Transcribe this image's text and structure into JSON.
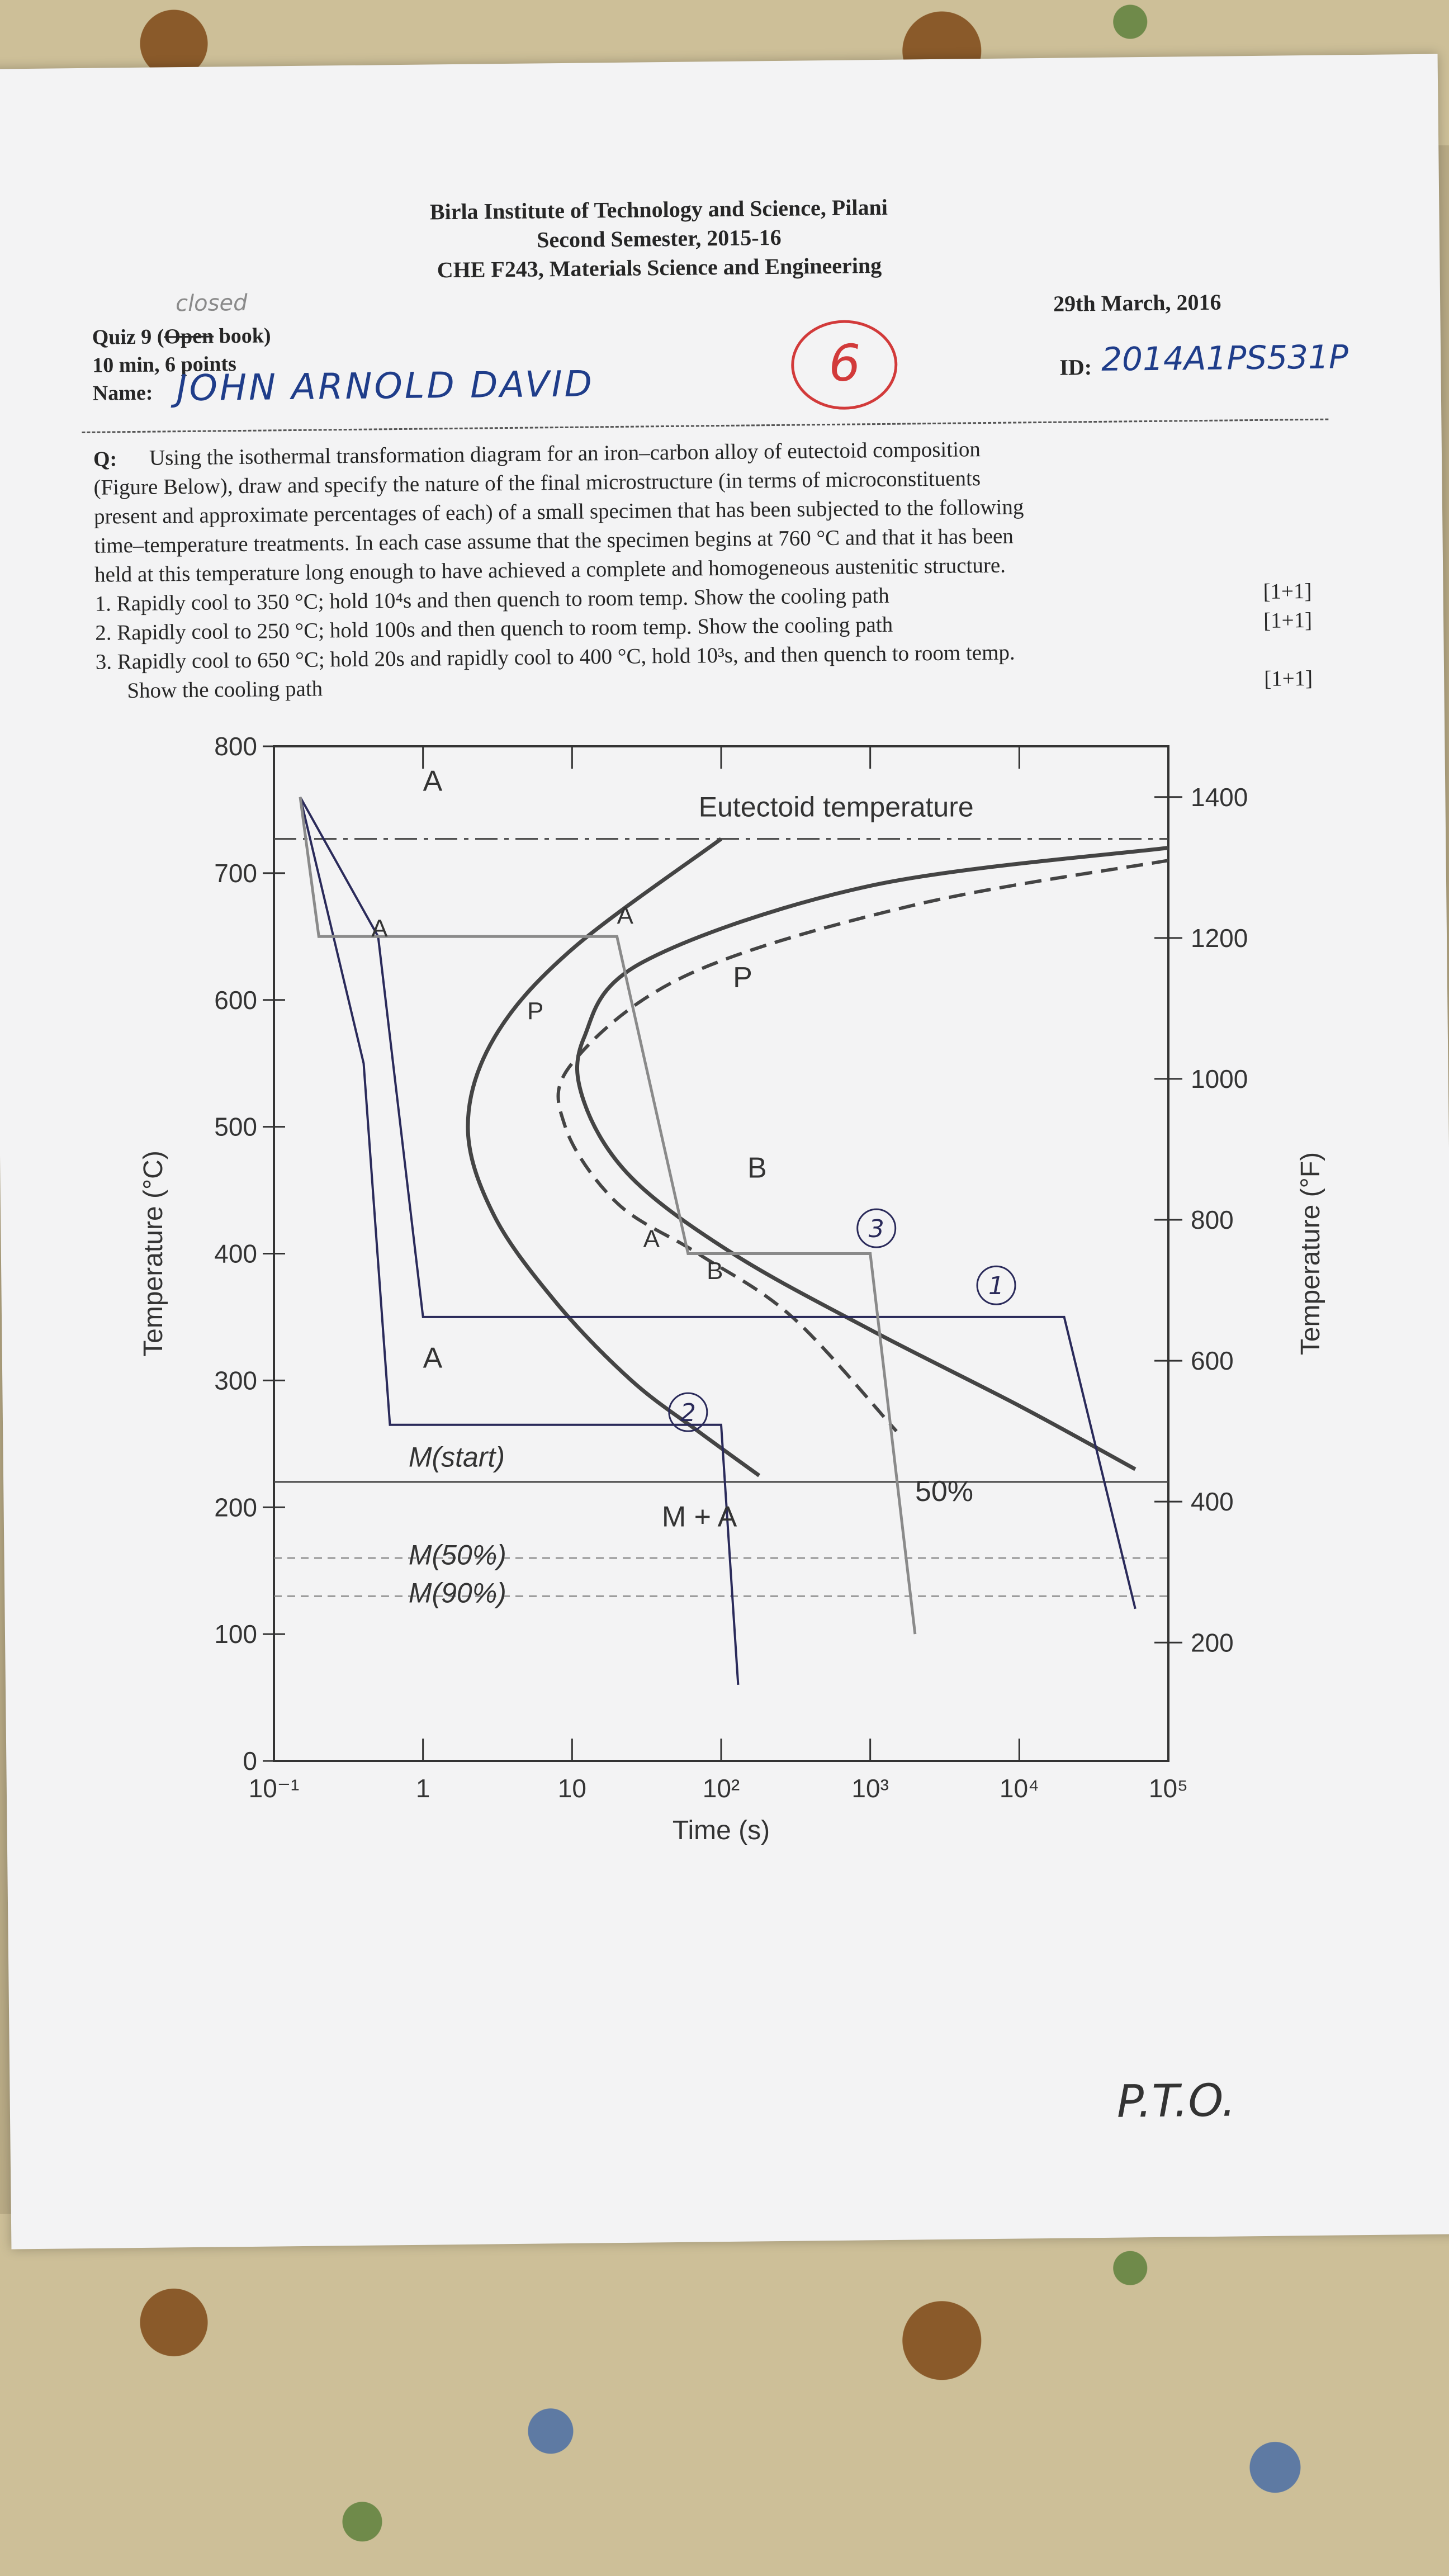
{
  "header": {
    "institute": "Birla Institute of Technology and Science, Pilani",
    "semester": "Second Semester, 2015-16",
    "course": "CHE F243, Materials Science and Engineering",
    "date": "29th March, 2016"
  },
  "quiz": {
    "closed_note": "closed",
    "title_prefix": "Quiz 9 (",
    "title_struck": "Open",
    "title_suffix": " book)",
    "duration": "10 min, 6 points",
    "name_label": "Name:",
    "name_value": "JOHN ARNOLD DAVID",
    "id_label": "ID:",
    "id_value": "2014A1PS531P",
    "score": "6"
  },
  "question": {
    "label": "Q:",
    "lines": [
      "Using the isothermal transformation diagram for an iron–carbon alloy of eutectoid composition",
      "(Figure Below), draw and specify the nature of the final microstructure (in terms of microconstituents",
      "present and approximate percentages of each) of a small specimen that has been subjected to the following",
      "time–temperature treatments. In each case assume that the specimen begins at 760 °C and that it has been",
      "held at this temperature long enough to have achieved a complete and homogeneous austenitic structure."
    ],
    "items": [
      {
        "text": "1.  Rapidly cool to 350 °C; hold 10⁴s and then quench to room temp. Show the cooling path",
        "points": "[1+1]"
      },
      {
        "text": "2.  Rapidly cool to 250 °C; hold 100s and then quench to room temp. Show the cooling path",
        "points": "[1+1]"
      },
      {
        "text": "3.  Rapidly cool to 650 °C; hold 20s and rapidly cool to 400 °C, hold 10³s, and then quench to room temp.",
        "points": ""
      },
      {
        "text": "Show the cooling path",
        "points": "[1+1]"
      }
    ]
  },
  "chart_data": {
    "type": "line",
    "xlabel": "Time (s)",
    "ylabel": "Temperature (°C)",
    "ylabel_right": "Temperature (°F)",
    "xscale": "log",
    "xlim": [
      0.1,
      100000
    ],
    "ylim": [
      0,
      800
    ],
    "x_tick_labels": [
      "10⁻¹",
      "1",
      "10",
      "10²",
      "10³",
      "10⁴",
      "10⁵"
    ],
    "x_tick_values": [
      0.1,
      1,
      10,
      100,
      1000,
      10000,
      100000
    ],
    "y_tick_values": [
      0,
      100,
      200,
      300,
      400,
      500,
      600,
      700,
      800
    ],
    "y_right_tick_values": [
      200,
      400,
      600,
      800,
      1000,
      1200,
      1400
    ],
    "eutectoid_label": "Eutectoid temperature",
    "eutectoid_temp": 727,
    "ms_temp": 220,
    "m50_temp": 160,
    "m90_temp": 130,
    "region_labels": {
      "A_top": "A",
      "P": "P",
      "B": "B",
      "A_low": "A",
      "M_start": "M(start)",
      "M_plus_A": "M + A",
      "M50": "M(50%)",
      "M90": "M(90%)",
      "fifty": "50%",
      "A_path": "A",
      "P_small": "P",
      "A_dash1": "A",
      "A_dash2": "A",
      "B_small": "B"
    },
    "start_curve": [
      [
        100,
        727
      ],
      [
        10,
        640
      ],
      [
        3,
        570
      ],
      [
        2,
        500
      ],
      [
        3,
        430
      ],
      [
        8,
        360
      ],
      [
        25,
        300
      ],
      [
        70,
        260
      ],
      [
        180,
        225
      ]
    ],
    "finish_curve": [
      [
        100000,
        720
      ],
      [
        1000,
        690
      ],
      [
        30,
        630
      ],
      [
        12,
        570
      ],
      [
        12,
        520
      ],
      [
        25,
        460
      ],
      [
        120,
        400
      ],
      [
        1000,
        340
      ],
      [
        10000,
        280
      ],
      [
        60000,
        230
      ]
    ],
    "fifty_curve": [
      [
        100000,
        710
      ],
      [
        2000,
        675
      ],
      [
        60,
        620
      ],
      [
        10,
        550
      ],
      [
        9,
        500
      ],
      [
        20,
        440
      ],
      [
        70,
        400
      ],
      [
        300,
        350
      ],
      [
        1500,
        260
      ]
    ],
    "cooling_path_1": [
      [
        0.15,
        760
      ],
      [
        0.5,
        650
      ],
      [
        1,
        350
      ],
      [
        20000,
        350
      ],
      [
        60000,
        120
      ]
    ],
    "cooling_path_2": [
      [
        0.15,
        760
      ],
      [
        0.4,
        550
      ],
      [
        0.6,
        265
      ],
      [
        100,
        265
      ],
      [
        130,
        60
      ]
    ],
    "cooling_path_3": [
      [
        0.15,
        760
      ],
      [
        0.2,
        650
      ],
      [
        20,
        650
      ],
      [
        60,
        400
      ],
      [
        1000,
        400
      ],
      [
        2000,
        100
      ]
    ],
    "annotations": [
      "1",
      "2",
      "3"
    ],
    "footer_note": "P.T.O."
  }
}
